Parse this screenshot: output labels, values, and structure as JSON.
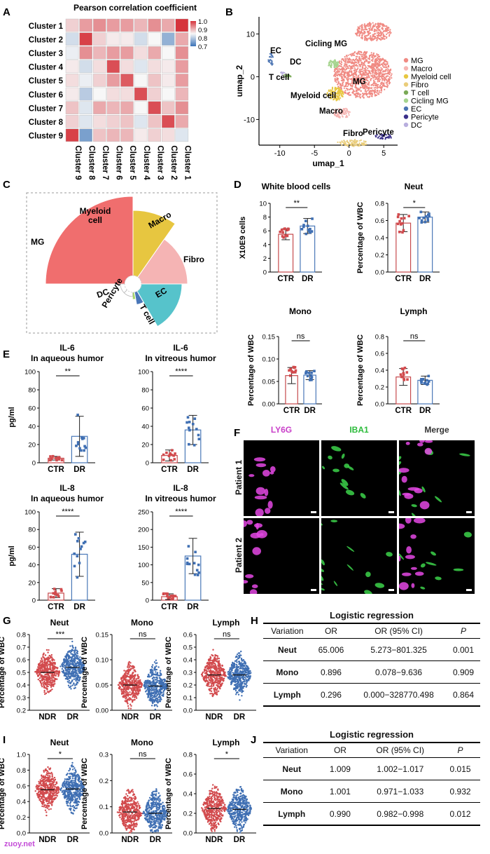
{
  "panels": {
    "A": "A",
    "B": "B",
    "C": "C",
    "D": "D",
    "E": "E",
    "F": "F",
    "G": "G",
    "H": "H",
    "I": "I",
    "J": "J"
  },
  "watermark": "zuoy.net",
  "heatmap": {
    "title": "Pearson correlation coefficient",
    "rows": [
      "Cluster 1",
      "Cluster 2",
      "Cluster 3",
      "Cluster 4",
      "Cluster 5",
      "Cluster 6",
      "Cluster 7",
      "Cluster 8",
      "Cluster 9"
    ],
    "cols": [
      "Cluster 9",
      "Cluster 8",
      "Cluster 7",
      "Cluster 6",
      "Cluster 5",
      "Cluster 4",
      "Cluster 3",
      "Cluster 2",
      "Cluster 1"
    ],
    "values": [
      [
        0.88,
        0.92,
        0.93,
        0.92,
        0.92,
        0.9,
        0.93,
        0.91,
        1.0
      ],
      [
        0.82,
        0.99,
        0.88,
        0.86,
        0.86,
        0.82,
        0.85,
        0.77,
        0.91
      ],
      [
        0.84,
        0.93,
        0.9,
        0.92,
        0.92,
        0.87,
        0.91,
        0.85,
        0.93
      ],
      [
        0.86,
        0.82,
        0.87,
        0.98,
        0.87,
        0.83,
        0.87,
        0.86,
        0.92
      ],
      [
        0.87,
        0.84,
        0.88,
        0.92,
        0.97,
        0.85,
        0.89,
        0.86,
        0.92
      ],
      [
        0.86,
        0.8,
        0.85,
        0.87,
        0.87,
        0.98,
        0.88,
        0.85,
        0.9
      ],
      [
        0.89,
        0.83,
        0.91,
        0.9,
        0.91,
        0.85,
        0.98,
        0.89,
        0.93
      ],
      [
        0.88,
        0.83,
        0.87,
        0.88,
        0.89,
        0.83,
        0.89,
        0.98,
        0.91
      ],
      [
        0.99,
        0.75,
        0.89,
        0.9,
        0.9,
        0.86,
        0.88,
        0.87,
        0.83
      ]
    ],
    "legend_ticks": [
      "1.0",
      "0.9",
      "0.8",
      "0.7"
    ],
    "colors": {
      "high": "#d6343c",
      "mid": "#f7f7f7",
      "low": "#3c74b8"
    }
  },
  "umap": {
    "xlabel": "umap_1",
    "ylabel": "umap_2",
    "xticks": [
      "-10",
      "-5",
      "0",
      "5"
    ],
    "yticks": [
      "10",
      "0",
      "-10"
    ],
    "clusters": [
      {
        "name": "MG",
        "color": "#f08a83",
        "label": "MG"
      },
      {
        "name": "Macro",
        "color": "#f6b5b3",
        "label": "Macro"
      },
      {
        "name": "Myeloid cell",
        "color": "#e7c740",
        "label": "Myeloid cell"
      },
      {
        "name": "Fibro",
        "color": "#eacd7a",
        "label": "Fibro"
      },
      {
        "name": "T cell",
        "color": "#7aa956",
        "label": "T cell"
      },
      {
        "name": "Cicling MG",
        "color": "#a5d48e",
        "label": "Cicling MG"
      },
      {
        "name": "EC",
        "color": "#4b74b2",
        "label": "EC"
      },
      {
        "name": "Pericyte",
        "color": "#3a2f8a",
        "label": "Pericyte"
      },
      {
        "name": "DC",
        "color": "#b8aede",
        "label": "DC"
      }
    ]
  },
  "rose": {
    "labels": [
      "MG",
      "Myeloid cell",
      "Macro",
      "Fibro",
      "EC",
      "T cell",
      "Pericyte",
      "DC"
    ],
    "colors": [
      "#f06e6e",
      "#e7c640",
      "#f5b4b4",
      "#56c3cb",
      "#4876b8",
      "#a6d66b",
      "#ffffff",
      "#ffffff"
    ]
  },
  "chart_data": [
    {
      "type": "bar",
      "title": "White blood cells",
      "ylabel": "X10E9 cells",
      "categories": [
        "CTR",
        "DR"
      ],
      "values": [
        5.5,
        6.7
      ],
      "sd": [
        0.8,
        1.1
      ],
      "ylim": [
        0,
        10
      ],
      "yticks": [
        "0",
        "2",
        "4",
        "6",
        "8",
        "10"
      ],
      "sig": "**"
    },
    {
      "type": "bar",
      "title": "Neut",
      "ylabel": "Percentage of WBC",
      "categories": [
        "CTR",
        "DR"
      ],
      "values": [
        0.57,
        0.64
      ],
      "sd": [
        0.1,
        0.06
      ],
      "ylim": [
        0,
        0.8
      ],
      "yticks": [
        "0.0",
        "0.2",
        "0.4",
        "0.6",
        "0.8"
      ],
      "sig": "*"
    },
    {
      "type": "bar",
      "title": "Mono",
      "ylabel": "Percentage of WBC",
      "categories": [
        "CTR",
        "DR"
      ],
      "values": [
        0.063,
        0.064
      ],
      "sd": [
        0.018,
        0.01
      ],
      "ylim": [
        0,
        0.15
      ],
      "yticks": [
        "0.00",
        "0.05",
        "0.10",
        "0.15"
      ],
      "sig": "ns"
    },
    {
      "type": "bar",
      "title": "Lymph",
      "ylabel": "Percentage of WBC",
      "categories": [
        "CTR",
        "DR"
      ],
      "values": [
        0.32,
        0.28
      ],
      "sd": [
        0.1,
        0.05
      ],
      "ylim": [
        0,
        0.8
      ],
      "yticks": [
        "0.0",
        "0.2",
        "0.4",
        "0.6",
        "0.8"
      ],
      "sig": "ns"
    },
    {
      "type": "bar",
      "title": "IL-6",
      "subtitle": "In aqueous humor",
      "ylabel": "pg/ml",
      "categories": [
        "CTR",
        "DR"
      ],
      "values": [
        5,
        29
      ],
      "sd": [
        2,
        22
      ],
      "ylim": [
        0,
        100
      ],
      "yticks": [
        "0",
        "20",
        "40",
        "60",
        "80",
        "100"
      ],
      "sig": "**"
    },
    {
      "type": "bar",
      "title": "IL-6",
      "subtitle": "In vitreous humor",
      "ylabel": "",
      "categories": [
        "CTR",
        "DR"
      ],
      "values": [
        8,
        36
      ],
      "sd": [
        6,
        16
      ],
      "ylim": [
        0,
        100
      ],
      "yticks": [
        "0",
        "20",
        "40",
        "60",
        "80",
        "100"
      ],
      "sig": "****"
    },
    {
      "type": "bar",
      "title": "IL-8",
      "subtitle": "In aqueous humor",
      "ylabel": "pg/ml",
      "categories": [
        "CTR",
        "DR"
      ],
      "values": [
        8,
        52
      ],
      "sd": [
        5,
        25
      ],
      "ylim": [
        0,
        100
      ],
      "yticks": [
        "0",
        "20",
        "40",
        "60",
        "80",
        "100"
      ],
      "sig": "****"
    },
    {
      "type": "bar",
      "title": "IL-8",
      "subtitle": "In vitreous humor",
      "ylabel": "",
      "categories": [
        "CTR",
        "DR"
      ],
      "values": [
        10,
        125
      ],
      "sd": [
        8,
        50
      ],
      "ylim": [
        0,
        250
      ],
      "yticks": [
        "0",
        "50",
        "100",
        "150",
        "200",
        "250"
      ],
      "sig": "****"
    },
    {
      "type": "scatter",
      "title": "Neut",
      "ylabel": "Percentage of WBC",
      "categories": [
        "NDR",
        "DR"
      ],
      "values": [
        0.5,
        0.54
      ],
      "ylim": [
        0.2,
        0.8
      ],
      "yticks": [
        "0.2",
        "0.3",
        "0.4",
        "0.5",
        "0.6",
        "0.7",
        "0.8"
      ],
      "sig": "***"
    },
    {
      "type": "scatter",
      "title": "Mono",
      "ylabel": "Percentage of WBC",
      "categories": [
        "NDR",
        "DR"
      ],
      "values": [
        0.05,
        0.048
      ],
      "ylim": [
        0,
        0.15
      ],
      "yticks": [
        "0.00",
        "0.05",
        "0.10",
        "0.15"
      ],
      "sig": "ns"
    },
    {
      "type": "scatter",
      "title": "Lymph",
      "ylabel": "Percentage of WBC",
      "categories": [
        "NDR",
        "DR"
      ],
      "values": [
        0.28,
        0.28
      ],
      "ylim": [
        0,
        0.6
      ],
      "yticks": [
        "0.0",
        "0.1",
        "0.2",
        "0.3",
        "0.4",
        "0.5",
        "0.6"
      ],
      "sig": "ns"
    },
    {
      "type": "scatter",
      "title": "Neut",
      "ylabel": "Percentage of WBC",
      "categories": [
        "NDR",
        "DR"
      ],
      "values": [
        0.55,
        0.56
      ],
      "ylim": [
        0,
        1.0
      ],
      "yticks": [
        "0.0",
        "0.2",
        "0.4",
        "0.6",
        "0.8",
        "1.0"
      ],
      "sig": "*"
    },
    {
      "type": "scatter",
      "title": "Mono",
      "ylabel": "Percentage of WBC",
      "categories": [
        "NDR",
        "DR"
      ],
      "values": [
        0.08,
        0.075
      ],
      "ylim": [
        0,
        0.3
      ],
      "yticks": [
        "0.0",
        "0.1",
        "0.2",
        "0.3"
      ],
      "sig": "ns"
    },
    {
      "type": "scatter",
      "title": "Lymph",
      "ylabel": "Percentage of WBC",
      "categories": [
        "NDR",
        "DR"
      ],
      "values": [
        0.25,
        0.24
      ],
      "ylim": [
        0,
        0.8
      ],
      "yticks": [
        "0.0",
        "0.2",
        "0.4",
        "0.6",
        "0.8"
      ],
      "sig": "*"
    }
  ],
  "colors": {
    "ctr": "#d24a4d",
    "dr": "#3f6fb3",
    "ctr_bar": "#c64a4d",
    "dr_bar": "#4a78b8"
  },
  "panelF": {
    "cols": [
      "LY6G",
      "IBA1",
      "Merge"
    ],
    "rows": [
      "Patient 1",
      "Patient 2"
    ],
    "col_colors": [
      "#c940c9",
      "#2bbb3a",
      "#333333"
    ]
  },
  "tableH": {
    "title": "Logistic regression",
    "headers": [
      "Variation",
      "OR",
      "OR (95% CI)",
      "P"
    ],
    "rows": [
      [
        "Neut",
        "65.006",
        "5.273−801.325",
        "0.001"
      ],
      [
        "Mono",
        "0.896",
        "0.078−9.636",
        "0.909"
      ],
      [
        "Lymph",
        "0.296",
        "0.000−328770.498",
        "0.864"
      ]
    ]
  },
  "tableJ": {
    "title": "Logistic regression",
    "headers": [
      "Variation",
      "OR",
      "OR (95% CI)",
      "P"
    ],
    "rows": [
      [
        "Neut",
        "1.009",
        "1.002−1.017",
        "0.015"
      ],
      [
        "Mono",
        "1.001",
        "0.971−1.033",
        "0.932"
      ],
      [
        "Lymph",
        "0.990",
        "0.982−0.998",
        "0.012"
      ]
    ]
  }
}
